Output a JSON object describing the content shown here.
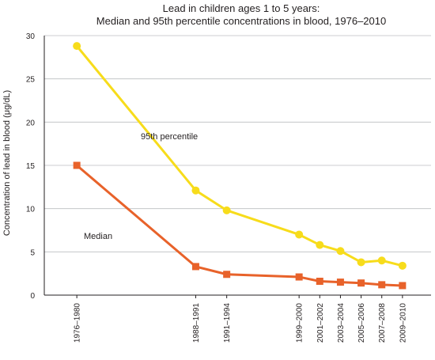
{
  "chart_data": {
    "type": "line",
    "title": "Lead in children ages 1 to 5 years:",
    "subtitle": "Median and 95th percentile concentrations in blood, 1976–2010",
    "ylabel": "Concentration of lead in blood (μg/dL)",
    "xlabel": "",
    "ylim": [
      0,
      30
    ],
    "yticks": [
      0,
      5,
      10,
      15,
      20,
      25,
      30
    ],
    "grid": "horizontal",
    "categories": [
      "1976–1980",
      "1988–1991",
      "1991–1994",
      "1999–2000",
      "2001–2002",
      "2003–2004",
      "2005–2006",
      "2007–2008",
      "2009–2010"
    ],
    "x_midyear": [
      1978,
      1989.5,
      1992.5,
      1999.5,
      2001.5,
      2003.5,
      2005.5,
      2007.5,
      2009.5
    ],
    "series": [
      {
        "name": "95th percentile",
        "color": "#f7dc1b",
        "marker": "circle",
        "values": [
          28.8,
          12.1,
          9.8,
          7.0,
          5.8,
          5.1,
          3.8,
          4.0,
          3.4
        ]
      },
      {
        "name": "Median",
        "color": "#e8622a",
        "marker": "square",
        "values": [
          15.0,
          3.3,
          2.4,
          2.1,
          1.6,
          1.5,
          1.4,
          1.2,
          1.1
        ]
      }
    ],
    "annotations": [
      {
        "text": "95th percentile",
        "series": 0
      },
      {
        "text": "Median",
        "series": 1
      }
    ]
  }
}
